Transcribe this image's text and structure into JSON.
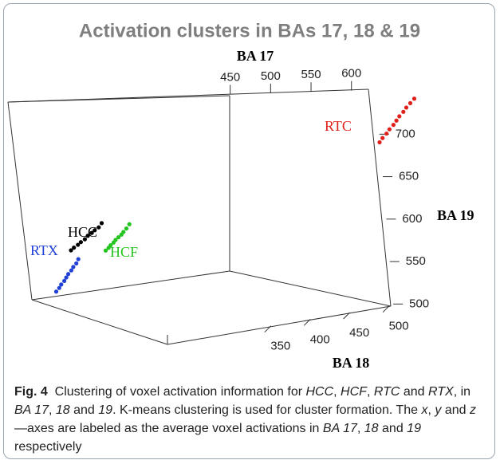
{
  "chart_data": {
    "type": "scatter3d",
    "title": "Activation clusters in BAs 17, 18 & 19",
    "xlabel": "BA 17",
    "ylabel": "BA 18",
    "zlabel": "BA 19",
    "xlim": [
      400,
      620
    ],
    "ylim": [
      330,
      510
    ],
    "zlim": [
      490,
      720
    ],
    "xticks": [
      450,
      500,
      550,
      600
    ],
    "yticks": [
      350,
      400,
      450,
      500
    ],
    "zticks": [
      500,
      550,
      600,
      650,
      700
    ],
    "series": [
      {
        "name": "RTX",
        "color": "#1f3fd6",
        "x": [
          420,
          421,
          422,
          423,
          424,
          425,
          426,
          427,
          428,
          429
        ],
        "y": [
          335,
          337,
          338,
          340,
          341,
          342,
          344,
          345,
          347,
          348
        ],
        "z": [
          500,
          504,
          508,
          512,
          516,
          520,
          524,
          528,
          532,
          537
        ]
      },
      {
        "name": "HCC",
        "color": "#000000",
        "x": [
          430,
          432,
          434,
          436,
          438,
          440,
          442,
          444,
          446,
          448
        ],
        "y": [
          340,
          341,
          343,
          344,
          346,
          347,
          349,
          350,
          352,
          353
        ],
        "z": [
          550,
          553,
          556,
          559,
          562,
          566,
          569,
          572,
          575,
          580
        ]
      },
      {
        "name": "HCF",
        "color": "#22c41e",
        "x": [
          450,
          452,
          453,
          455,
          456,
          458,
          460,
          461,
          463,
          465
        ],
        "y": [
          355,
          356,
          357,
          358,
          359,
          360,
          361,
          362,
          363,
          364
        ],
        "z": [
          545,
          548,
          551,
          554,
          557,
          560,
          563,
          566,
          570,
          575
        ]
      },
      {
        "name": "RTC",
        "color": "#e0201a",
        "x": [
          590,
          592,
          594,
          596,
          598,
          600,
          602,
          604,
          606,
          608,
          610
        ],
        "y": [
          490,
          491,
          493,
          494,
          496,
          497,
          498,
          500,
          501,
          503,
          505
        ],
        "z": [
          640,
          645,
          650,
          655,
          660,
          665,
          670,
          675,
          680,
          685,
          690
        ]
      }
    ],
    "caption": [
      {
        "text": "Fig. 4",
        "style": "bold"
      },
      {
        "text": "  Clustering of voxel activation information for ",
        "style": "normal"
      },
      {
        "text": "HCC",
        "style": "italic"
      },
      {
        "text": ", ",
        "style": "normal"
      },
      {
        "text": "HCF",
        "style": "italic"
      },
      {
        "text": ", ",
        "style": "normal"
      },
      {
        "text": "RTC",
        "style": "italic"
      },
      {
        "text": " and ",
        "style": "normal"
      },
      {
        "text": "RTX",
        "style": "italic"
      },
      {
        "text": ", in ",
        "style": "normal"
      },
      {
        "text": "BA 17",
        "style": "italic"
      },
      {
        "text": ", ",
        "style": "normal"
      },
      {
        "text": "18",
        "style": "italic"
      },
      {
        "text": " and ",
        "style": "normal"
      },
      {
        "text": "19",
        "style": "italic"
      },
      {
        "text": ". K-means clustering is used for cluster formation. The ",
        "style": "normal"
      },
      {
        "text": "x",
        "style": "italic"
      },
      {
        "text": ", ",
        "style": "normal"
      },
      {
        "text": "y",
        "style": "italic"
      },
      {
        "text": " and ",
        "style": "normal"
      },
      {
        "text": "z",
        "style": "italic"
      },
      {
        "text": "—axes are labeled as the average voxel activations in ",
        "style": "normal"
      },
      {
        "text": "BA 17",
        "style": "italic"
      },
      {
        "text": ", ",
        "style": "normal"
      },
      {
        "text": "18",
        "style": "italic"
      },
      {
        "text": " and ",
        "style": "normal"
      },
      {
        "text": "19",
        "style": "italic"
      },
      {
        "text": " respectively",
        "style": "normal"
      }
    ]
  }
}
